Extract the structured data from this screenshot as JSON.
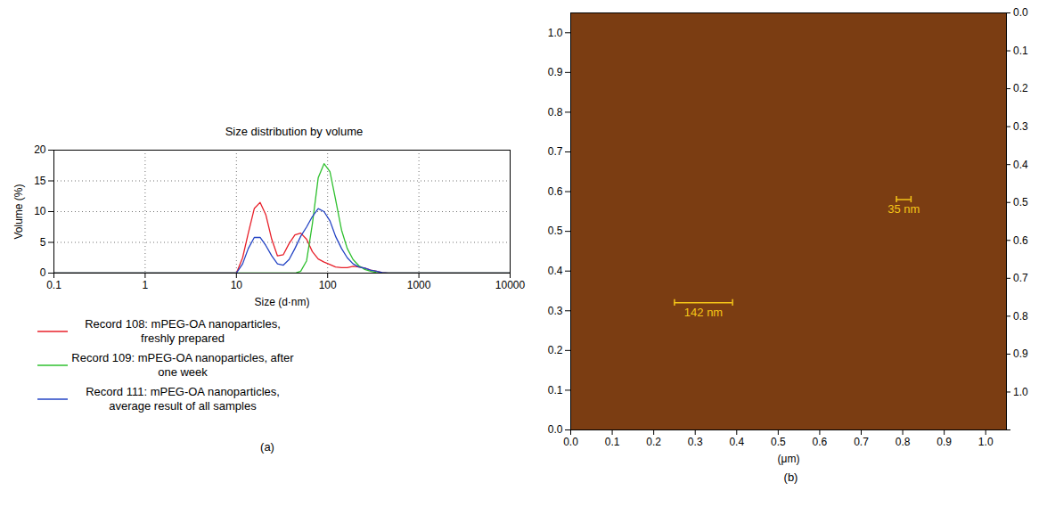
{
  "chart_data": [
    {
      "type": "line",
      "title": "Size distribution by volume",
      "xlabel": "Size (d·nm)",
      "ylabel": "Volume (%)",
      "log": "x",
      "grid": true,
      "legend": "bottom",
      "panel_label": "(a)",
      "xlim": [
        0.1,
        10000
      ],
      "xticks": [
        0.1,
        1,
        10,
        100,
        1000,
        10000
      ],
      "ylim": [
        0,
        20
      ],
      "yticks": [
        0,
        5,
        10,
        15,
        20
      ],
      "x": [
        0.1,
        10,
        11.7,
        13.5,
        15.7,
        18.2,
        21,
        24.4,
        28.2,
        32.7,
        37.8,
        43.8,
        50.7,
        58.8,
        68,
        78.8,
        91.3,
        106,
        122,
        142,
        164,
        190,
        220,
        255,
        295,
        342,
        396,
        459,
        10000
      ],
      "series": [
        {
          "name": "Record 108: mPEG-OA nanoparticles, freshly prepared",
          "color": "#e8202a",
          "values": [
            0,
            0,
            2.5,
            6.5,
            10.5,
            11.5,
            9.5,
            5.5,
            2.8,
            3,
            4.8,
            6.2,
            6.5,
            5.5,
            3.5,
            2.3,
            1.8,
            1.4,
            1,
            0.9,
            0.9,
            1.1,
            1,
            0.8,
            0.5,
            0.3,
            0.1,
            0,
            0
          ]
        },
        {
          "name": "Record 109: mPEG-OA nanoparticles, after one week",
          "color": "#2fc02f",
          "values": [
            0,
            0,
            0,
            0,
            0,
            0,
            0,
            0,
            0,
            0,
            0,
            0,
            0.3,
            2,
            8,
            15.5,
            17.8,
            16.5,
            12,
            7,
            4,
            2.2,
            1.2,
            0.6,
            0.3,
            0.1,
            0,
            0,
            0
          ]
        },
        {
          "name": "Record 111: mPEG-OA nanoparticles, average result of all samples",
          "color": "#2444c4",
          "values": [
            0,
            0,
            1.5,
            4,
            5.8,
            5.8,
            4.5,
            2.8,
            1.5,
            1.3,
            2.2,
            4,
            6,
            7.5,
            9.2,
            10.5,
            10,
            8.5,
            6,
            4,
            2.5,
            1.5,
            1,
            0.8,
            0.5,
            0.3,
            0.1,
            0,
            0
          ]
        }
      ]
    },
    {
      "type": "image",
      "xlabel": "(μm)",
      "panel_label": "(b)",
      "color": "#7b3d12",
      "xlim": [
        0,
        1.05
      ],
      "xticks": [
        {
          "value": 0,
          "label": "0.0"
        },
        0.1,
        0.2,
        0.3,
        0.4,
        0.5,
        0.6,
        0.7,
        0.8,
        0.9,
        {
          "value": 1,
          "label": "1.0"
        }
      ],
      "ylim": [
        0,
        1.05
      ],
      "yticks": [
        {
          "value": 0,
          "label": "0.0"
        },
        0.1,
        0.2,
        0.3,
        0.4,
        0.5,
        0.6,
        0.7,
        0.8,
        0.9,
        {
          "value": 1,
          "label": "1.0"
        }
      ],
      "y2lim": [
        1.1,
        0
      ],
      "y2ticks": [
        {
          "value": 0,
          "label": "0.0"
        },
        0.1,
        0.2,
        0.3,
        0.4,
        0.5,
        0.6,
        0.7,
        0.8,
        0.9,
        {
          "value": 1,
          "label": "1.0"
        }
      ],
      "annotations": [
        {
          "text": "142 nm",
          "x": [
            0.25,
            0.39
          ],
          "y": 0.32
        },
        {
          "text": "35 nm",
          "x": [
            0.785,
            0.82
          ],
          "y": 0.58
        }
      ]
    }
  ]
}
